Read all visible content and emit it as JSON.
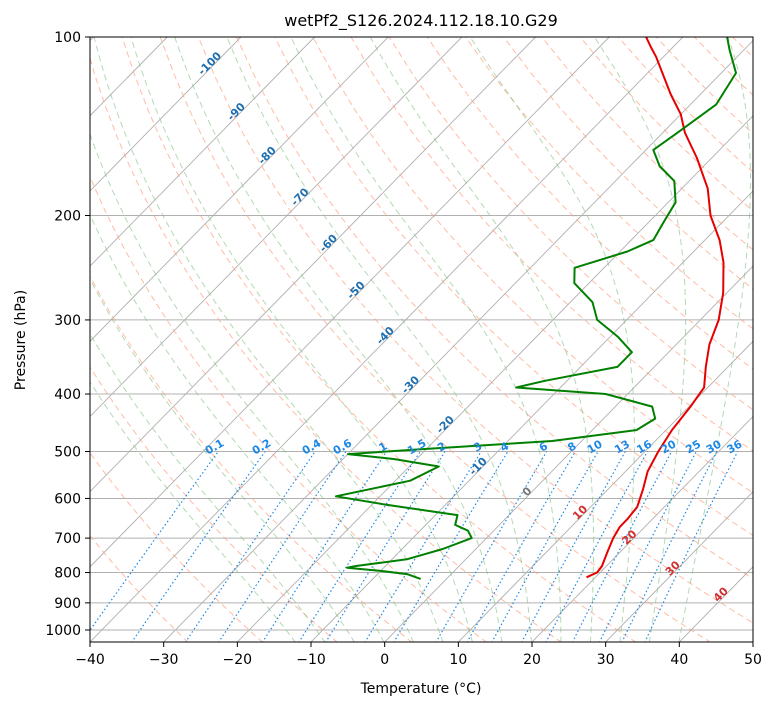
{
  "chart_data": {
    "type": "line",
    "subtype": "skew-T log-P sounding",
    "title": "wetPf2_S126.2024.112.18.10.G29",
    "xlabel": "Temperature (°C)",
    "ylabel": "Pressure (hPa)",
    "xlim": [
      -40,
      50
    ],
    "ylim": [
      1050,
      100
    ],
    "y_scale": "log",
    "x_ticks": [
      -40,
      -30,
      -20,
      -10,
      0,
      10,
      20,
      30,
      40,
      50
    ],
    "y_ticks": [
      100,
      200,
      300,
      400,
      500,
      600,
      700,
      800,
      900,
      1000
    ],
    "grid": true,
    "series": [
      {
        "color": "#e60000",
        "role": "temperature",
        "points": [
          {
            "p": 815,
            "t": 18.8
          },
          {
            "p": 800,
            "t": 19.6
          },
          {
            "p": 780,
            "t": 19.4
          },
          {
            "p": 740,
            "t": 18.3
          },
          {
            "p": 700,
            "t": 17.2
          },
          {
            "p": 670,
            "t": 16.6
          },
          {
            "p": 650,
            "t": 16.6
          },
          {
            "p": 620,
            "t": 16.3
          },
          {
            "p": 580,
            "t": 14.8
          },
          {
            "p": 540,
            "t": 13.0
          },
          {
            "p": 500,
            "t": 11.8
          },
          {
            "p": 460,
            "t": 10.8
          },
          {
            "p": 420,
            "t": 10.2
          },
          {
            "p": 390,
            "t": 9.5
          },
          {
            "p": 360,
            "t": 7.0
          },
          {
            "p": 330,
            "t": 4.5
          },
          {
            "p": 300,
            "t": 2.5
          },
          {
            "p": 270,
            "t": -0.5
          },
          {
            "p": 240,
            "t": -4.5
          },
          {
            "p": 220,
            "t": -8.0
          },
          {
            "p": 200,
            "t": -12.5
          },
          {
            "p": 180,
            "t": -16.5
          },
          {
            "p": 160,
            "t": -22.0
          },
          {
            "p": 145,
            "t": -27.0
          },
          {
            "p": 135,
            "t": -30.0
          },
          {
            "p": 125,
            "t": -34.0
          },
          {
            "p": 115,
            "t": -38.0
          },
          {
            "p": 108,
            "t": -41.0
          },
          {
            "p": 104,
            "t": -43.0
          },
          {
            "p": 100,
            "t": -45.0
          }
        ]
      },
      {
        "color": "#008000",
        "role": "dewpoint",
        "points": [
          {
            "p": 820,
            "t": -3.5
          },
          {
            "p": 805,
            "t": -6.0
          },
          {
            "p": 795,
            "t": -10.0
          },
          {
            "p": 785,
            "t": -15.0
          },
          {
            "p": 780,
            "t": -14.0
          },
          {
            "p": 760,
            "t": -8.0
          },
          {
            "p": 730,
            "t": -4.5
          },
          {
            "p": 700,
            "t": -2.0
          },
          {
            "p": 680,
            "t": -3.5
          },
          {
            "p": 665,
            "t": -6.0
          },
          {
            "p": 640,
            "t": -7.0
          },
          {
            "p": 615,
            "t": -18.0
          },
          {
            "p": 595,
            "t": -26.0
          },
          {
            "p": 560,
            "t": -18.0
          },
          {
            "p": 530,
            "t": -16.0
          },
          {
            "p": 515,
            "t": -23.0
          },
          {
            "p": 505,
            "t": -30.0
          },
          {
            "p": 495,
            "t": -20.0
          },
          {
            "p": 480,
            "t": -4.0
          },
          {
            "p": 460,
            "t": 6.0
          },
          {
            "p": 440,
            "t": 7.0
          },
          {
            "p": 420,
            "t": 5.0
          },
          {
            "p": 400,
            "t": -3.0
          },
          {
            "p": 390,
            "t": -16.0
          },
          {
            "p": 380,
            "t": -13.0
          },
          {
            "p": 360,
            "t": -5.0
          },
          {
            "p": 340,
            "t": -5.0
          },
          {
            "p": 320,
            "t": -9.0
          },
          {
            "p": 300,
            "t": -14.0
          },
          {
            "p": 280,
            "t": -17.0
          },
          {
            "p": 260,
            "t": -22.0
          },
          {
            "p": 245,
            "t": -24.0
          },
          {
            "p": 230,
            "t": -19.0
          },
          {
            "p": 220,
            "t": -17.0
          },
          {
            "p": 205,
            "t": -18.0
          },
          {
            "p": 190,
            "t": -19.0
          },
          {
            "p": 175,
            "t": -22.0
          },
          {
            "p": 165,
            "t": -26.0
          },
          {
            "p": 155,
            "t": -29.0
          },
          {
            "p": 145,
            "t": -28.0
          },
          {
            "p": 130,
            "t": -26.5
          },
          {
            "p": 115,
            "t": -28.0
          },
          {
            "p": 105,
            "t": -32.0
          },
          {
            "p": 100,
            "t": -34.0
          }
        ]
      }
    ],
    "background_lines": {
      "isotherm_color": "#b0b0b0",
      "dry_adiabat_color": "#ff9f80",
      "moist_adiabat_color": "#80c080",
      "mixing_ratio_color": "#1e88e5"
    },
    "annotations": {
      "dry_adiabat_labels": [
        "-100",
        "-90",
        "-80",
        "-70",
        "-60",
        "-50",
        "-40",
        "-30",
        "-20",
        "-10",
        "0",
        "10",
        "20",
        "30",
        "40"
      ],
      "mixing_ratio_labels": [
        "0.1",
        "0.2",
        "0.4",
        "0.6",
        "1",
        "1.5",
        "2",
        "3",
        "4",
        "6",
        "8",
        "10",
        "13",
        "16",
        "20",
        "25",
        "30",
        "36"
      ]
    }
  }
}
